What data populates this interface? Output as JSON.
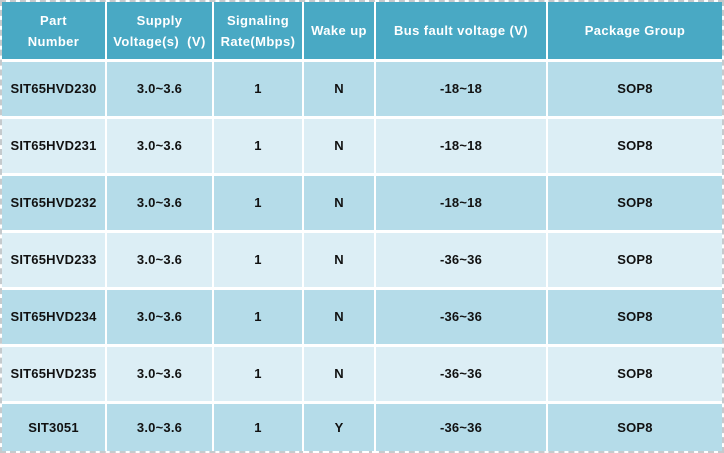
{
  "colors": {
    "header_bg": "#49a9c4",
    "header_text": "#ffffff",
    "row_odd_bg": "#b5dce9",
    "row_even_bg": "#dceef5",
    "cell_text": "#111111",
    "grid_line": "#ffffff",
    "outer_dashed_border": "#c5cacd"
  },
  "table": {
    "columns": [
      {
        "id": "part-number",
        "label_lines": [
          "Part",
          "Number"
        ]
      },
      {
        "id": "supply-voltage",
        "label_lines": [
          "Supply",
          "Voltage(s)  (V)"
        ]
      },
      {
        "id": "signaling-rate",
        "label_lines": [
          "Signaling",
          "Rate(Mbps)"
        ]
      },
      {
        "id": "wake-up",
        "label_lines": [
          "Wake up"
        ]
      },
      {
        "id": "bus-fault-voltage",
        "label_lines": [
          "Bus fault voltage (V)"
        ]
      },
      {
        "id": "package-group",
        "label_lines": [
          "Package Group"
        ]
      }
    ],
    "rows": [
      [
        "SIT65HVD230",
        "3.0~3.6",
        "1",
        "N",
        "-18~18",
        "SOP8"
      ],
      [
        "SIT65HVD231",
        "3.0~3.6",
        "1",
        "N",
        "-18~18",
        "SOP8"
      ],
      [
        "SIT65HVD232",
        "3.0~3.6",
        "1",
        "N",
        "-18~18",
        "SOP8"
      ],
      [
        "SIT65HVD233",
        "3.0~3.6",
        "1",
        "N",
        "-36~36",
        "SOP8"
      ],
      [
        "SIT65HVD234",
        "3.0~3.6",
        "1",
        "N",
        "-36~36",
        "SOP8"
      ],
      [
        "SIT65HVD235",
        "3.0~3.6",
        "1",
        "N",
        "-36~36",
        "SOP8"
      ],
      [
        "SIT3051",
        "3.0~3.6",
        "1",
        "Y",
        "-36~36",
        "SOP8"
      ]
    ]
  }
}
